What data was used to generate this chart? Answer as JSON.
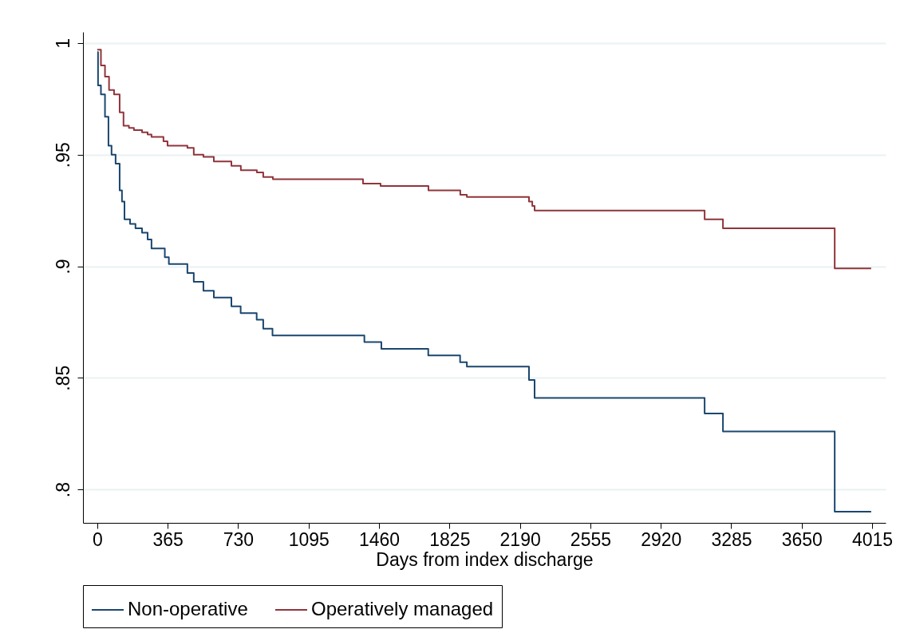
{
  "chart_data": {
    "type": "step",
    "xlabel": "Days from index discharge",
    "xlim": [
      -74,
      4085
    ],
    "xticks": [
      0,
      365,
      730,
      1095,
      1460,
      1825,
      2190,
      2555,
      2920,
      3285,
      3650,
      4015
    ],
    "ylim": [
      0.785,
      1.005
    ],
    "yticks": [
      {
        "value": 0.8,
        "label": ".8"
      },
      {
        "value": 0.85,
        "label": ".85"
      },
      {
        "value": 0.9,
        "label": ".9"
      },
      {
        "value": 0.95,
        "label": ".95"
      },
      1
    ],
    "grid": "y",
    "legend": "bottom",
    "line_style": "solid",
    "marker": "none",
    "series": [
      {
        "name": "Non-operative",
        "color": "#1a476f",
        "x": [
          0,
          4,
          19,
          40,
          58,
          74,
          95,
          116,
          128,
          141,
          170,
          198,
          232,
          261,
          281,
          350,
          371,
          467,
          500,
          550,
          604,
          695,
          743,
          826,
          860,
          908,
          1384,
          1472,
          1715,
          1880,
          1915,
          2237,
          2266,
          3147,
          3242,
          3821,
          4010
        ],
        "values": [
          0.996,
          0.981,
          0.977,
          0.967,
          0.954,
          0.95,
          0.946,
          0.934,
          0.929,
          0.921,
          0.919,
          0.917,
          0.915,
          0.912,
          0.908,
          0.904,
          0.901,
          0.897,
          0.893,
          0.889,
          0.886,
          0.882,
          0.879,
          0.876,
          0.872,
          0.869,
          0.866,
          0.863,
          0.86,
          0.857,
          0.855,
          0.849,
          0.841,
          0.834,
          0.826,
          0.79,
          0.79
        ]
      },
      {
        "name": "Operatively managed",
        "color": "#90353b",
        "x": [
          0,
          19,
          40,
          61,
          87,
          116,
          136,
          164,
          190,
          232,
          261,
          281,
          343,
          364,
          467,
          500,
          550,
          604,
          695,
          744,
          827,
          860,
          910,
          1377,
          1468,
          1716,
          1881,
          1915,
          2237,
          2254,
          2266,
          3147,
          3242,
          3821,
          4010
        ],
        "values": [
          0.997,
          0.99,
          0.985,
          0.979,
          0.977,
          0.969,
          0.963,
          0.962,
          0.961,
          0.96,
          0.959,
          0.958,
          0.956,
          0.954,
          0.953,
          0.95,
          0.949,
          0.947,
          0.945,
          0.943,
          0.942,
          0.94,
          0.939,
          0.937,
          0.936,
          0.934,
          0.932,
          0.931,
          0.929,
          0.927,
          0.925,
          0.921,
          0.917,
          0.899,
          0.899
        ]
      }
    ]
  }
}
